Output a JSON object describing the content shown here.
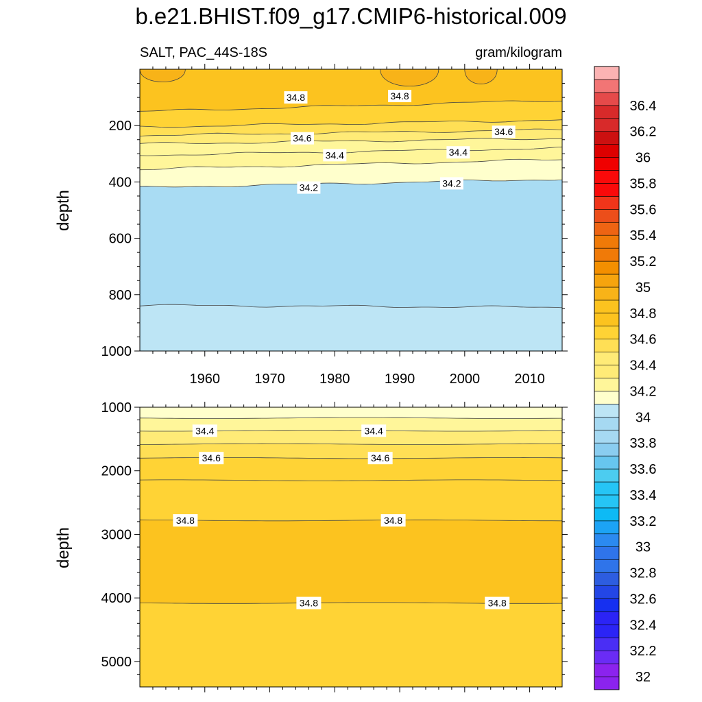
{
  "title": "b.e21.BHIST.f09_g17.CMIP6-historical.009",
  "colors": {
    "palette": [
      "#8b23ee",
      "#6a2cf5",
      "#4a2ef5",
      "#2b24f5",
      "#1630f0",
      "#2346e6",
      "#2d5de0",
      "#2f74ea",
      "#2b8af0",
      "#1ca3f5",
      "#0dbaf5",
      "#26c5f5",
      "#4cccf0",
      "#67c6ef",
      "#8acdf0",
      "#a6d9f2",
      "#bde5f5",
      "#ffffcc",
      "#fff69a",
      "#ffeb77",
      "#ffdf55",
      "#ffd335",
      "#fcc31f",
      "#f8b318",
      "#f6a40e",
      "#f38f00",
      "#f07a08",
      "#ee6413",
      "#ec4e1a",
      "#f0351a",
      "#fa0a0a",
      "#f00000",
      "#dd0000",
      "#cc1010",
      "#d82a2a",
      "#e54a4a",
      "#f27575",
      "#fbb3b3"
    ],
    "line": "#444444"
  },
  "chart_data": [
    {
      "type": "contour",
      "variable_label": "SALT, PAC_44S-18S",
      "units_label": "gram/kilogram",
      "ylabel": "depth",
      "x_range": [
        1950,
        2015
      ],
      "y_range": [
        0,
        1000
      ],
      "y_reversed": true,
      "x_ticks": [
        1960,
        1970,
        1980,
        1990,
        2000,
        2010
      ],
      "x_tick_labels": [
        "1960",
        "1970",
        "1980",
        "1990",
        "2000",
        "2010"
      ],
      "y_ticks": [
        200,
        400,
        600,
        800,
        1000
      ],
      "y_tick_labels": [
        "200",
        "400",
        "600",
        "800",
        "1000"
      ],
      "contour_levels": [
        34.0,
        34.2,
        34.3,
        34.4,
        34.5,
        34.6,
        34.7,
        34.8
      ],
      "contour_depths_at_1950_2015": {
        "34.0": [
          838,
          845
        ],
        "34.2": [
          420,
          390
        ],
        "34.3": [
          355,
          320
        ],
        "34.4": [
          305,
          280
        ],
        "34.5": [
          265,
          245
        ],
        "34.6": [
          235,
          215
        ],
        "34.7": [
          205,
          180
        ],
        "34.8": [
          150,
          110
        ]
      },
      "contour_labels": [
        {
          "text": "34.8",
          "x": 1974,
          "y": 100
        },
        {
          "text": "34.8",
          "x": 1990,
          "y": 95
        },
        {
          "text": "34.6",
          "x": 1975,
          "y": 245
        },
        {
          "text": "34.6",
          "x": 2006,
          "y": 222
        },
        {
          "text": "34.4",
          "x": 1980,
          "y": 305
        },
        {
          "text": "34.4",
          "x": 1999,
          "y": 295
        },
        {
          "text": "34.2",
          "x": 1976,
          "y": 420
        },
        {
          "text": "34.2",
          "x": 1998,
          "y": 405
        }
      ]
    },
    {
      "type": "contour",
      "ylabel": "depth",
      "x_range": [
        1950,
        2015
      ],
      "y_range": [
        1000,
        5400
      ],
      "y_reversed": true,
      "y_ticks": [
        1000,
        2000,
        3000,
        4000,
        5000
      ],
      "y_tick_labels": [
        "1000",
        "2000",
        "3000",
        "4000",
        "5000"
      ],
      "contour_levels": [
        34.3,
        34.4,
        34.5,
        34.6,
        34.7,
        34.8,
        34.8
      ],
      "contour_depths": [
        1170,
        1370,
        1580,
        1800,
        2150,
        2780,
        4080
      ],
      "contour_labels": [
        {
          "text": "34.4",
          "x": 1960,
          "y": 1370
        },
        {
          "text": "34.4",
          "x": 1986,
          "y": 1370
        },
        {
          "text": "34.6",
          "x": 1961,
          "y": 1800
        },
        {
          "text": "34.6",
          "x": 1987,
          "y": 1800
        },
        {
          "text": "34.8",
          "x": 1957,
          "y": 2780
        },
        {
          "text": "34.8",
          "x": 1989,
          "y": 2780
        },
        {
          "text": "34.8",
          "x": 1976,
          "y": 4080
        },
        {
          "text": "34.8",
          "x": 2005,
          "y": 4080
        }
      ]
    },
    {
      "type": "colorbar",
      "range": [
        31.9,
        36.7
      ],
      "step": 0.1,
      "tick_labels": [
        "36.4",
        "36.2",
        "36",
        "35.8",
        "35.6",
        "35.4",
        "35.2",
        "35",
        "34.8",
        "34.6",
        "34.4",
        "34.2",
        "34",
        "33.8",
        "33.6",
        "33.4",
        "33.2",
        "33",
        "32.8",
        "32.6",
        "32.4",
        "32.2",
        "32"
      ],
      "tick_values": [
        36.4,
        36.2,
        36.0,
        35.8,
        35.6,
        35.4,
        35.2,
        35.0,
        34.8,
        34.6,
        34.4,
        34.2,
        34.0,
        33.8,
        33.6,
        33.4,
        33.2,
        33.0,
        32.8,
        32.6,
        32.4,
        32.2,
        32.0
      ]
    }
  ]
}
